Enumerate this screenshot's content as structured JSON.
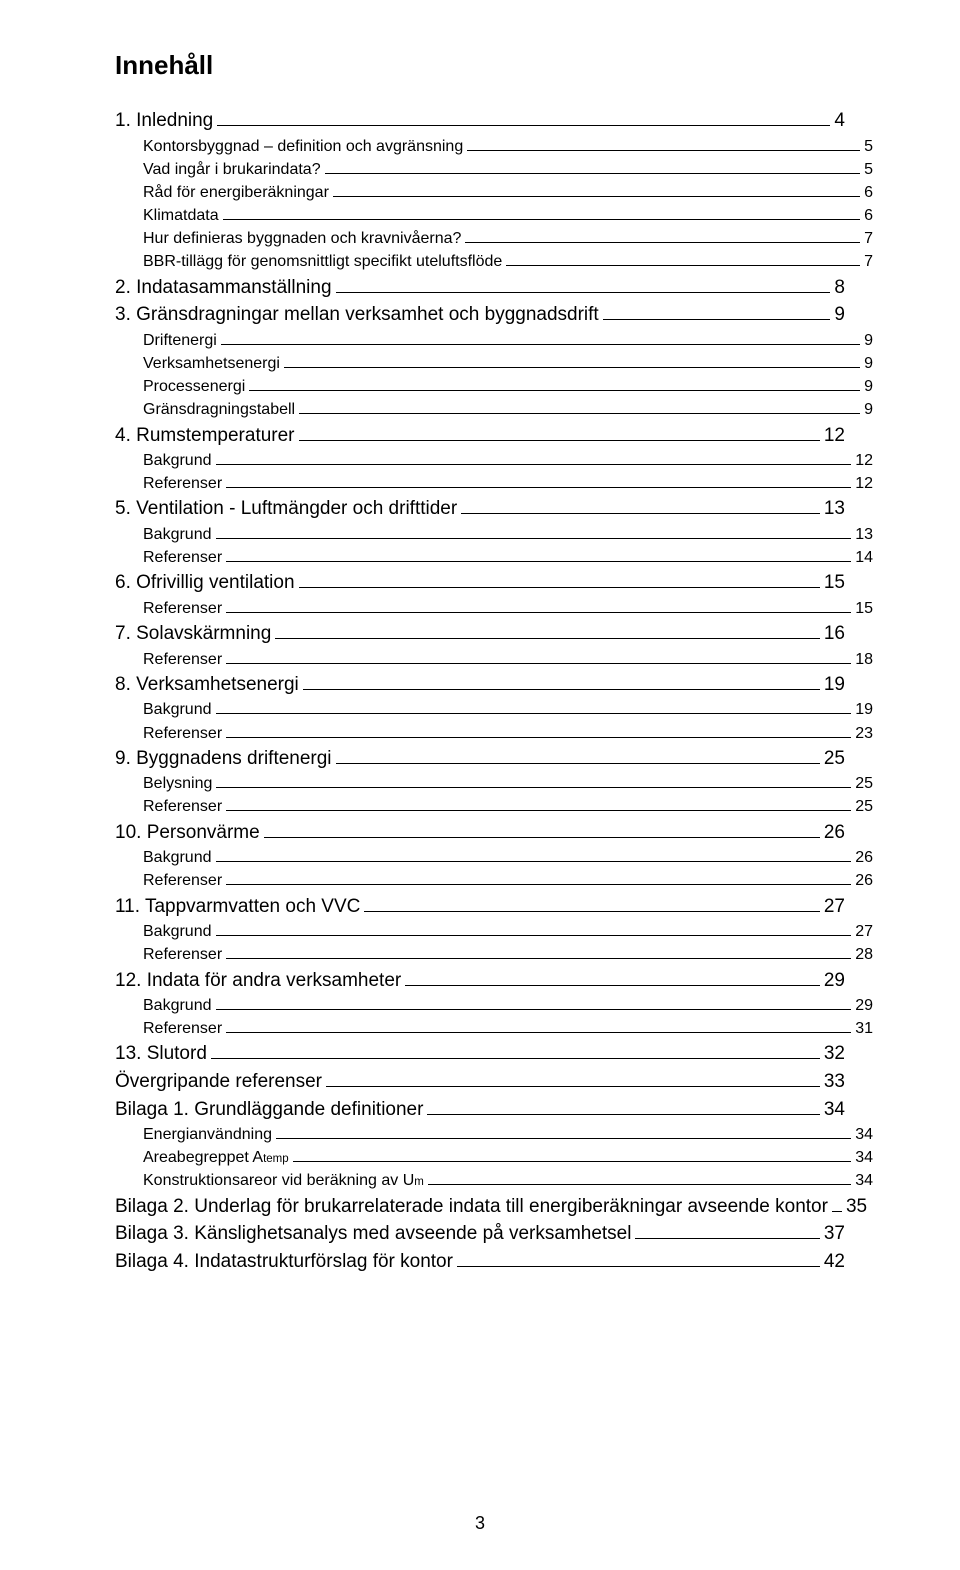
{
  "title": "Innehåll",
  "page_number": "3",
  "font_family": "Arial, Helvetica, sans-serif",
  "color_text": "#000000",
  "color_bg": "#ffffff",
  "font_sizes": {
    "title": 26,
    "level1": 19,
    "level2": 16,
    "pagenum": 18
  },
  "entries": [
    {
      "level": 1,
      "label": "1. Inledning",
      "page": "4"
    },
    {
      "level": 2,
      "label": "Kontorsbyggnad – definition och avgränsning",
      "page": "5"
    },
    {
      "level": 2,
      "label": "Vad ingår i brukarindata?",
      "page": "5"
    },
    {
      "level": 2,
      "label": "Råd för energiberäkningar",
      "page": "6"
    },
    {
      "level": 2,
      "label": "Klimatdata",
      "page": "6"
    },
    {
      "level": 2,
      "label": "Hur definieras byggnaden och kravnivåerna?",
      "page": "7"
    },
    {
      "level": 2,
      "label": "BBR-tillägg för genomsnittligt specifikt uteluftsflöde",
      "page": "7"
    },
    {
      "level": 1,
      "label": "2. Indatasammanställning",
      "page": "8"
    },
    {
      "level": 1,
      "label": "3. Gränsdragningar mellan verksamhet och byggnadsdrift",
      "page": "9"
    },
    {
      "level": 2,
      "label": "Driftenergi",
      "page": "9"
    },
    {
      "level": 2,
      "label": "Verksamhetsenergi",
      "page": "9"
    },
    {
      "level": 2,
      "label": "Processenergi",
      "page": "9"
    },
    {
      "level": 2,
      "label": "Gränsdragningstabell",
      "page": "9"
    },
    {
      "level": 1,
      "label": "4. Rumstemperaturer",
      "page": "12"
    },
    {
      "level": 2,
      "label": "Bakgrund",
      "page": "12"
    },
    {
      "level": 2,
      "label": "Referenser",
      "page": "12"
    },
    {
      "level": 1,
      "label": "5. Ventilation - Luftmängder och drifttider",
      "page": "13"
    },
    {
      "level": 2,
      "label": "Bakgrund",
      "page": "13"
    },
    {
      "level": 2,
      "label": "Referenser",
      "page": "14"
    },
    {
      "level": 1,
      "label": "6. Ofrivillig ventilation",
      "page": "15"
    },
    {
      "level": 2,
      "label": "Referenser",
      "page": "15"
    },
    {
      "level": 1,
      "label": "7. Solavskärmning",
      "page": "16"
    },
    {
      "level": 2,
      "label": "Referenser",
      "page": "18"
    },
    {
      "level": 1,
      "label": "8. Verksamhetsenergi",
      "page": "19"
    },
    {
      "level": 2,
      "label": "Bakgrund",
      "page": "19"
    },
    {
      "level": 2,
      "label": "Referenser",
      "page": "23"
    },
    {
      "level": 1,
      "label": "9. Byggnadens driftenergi",
      "page": "25"
    },
    {
      "level": 2,
      "label": "Belysning",
      "page": "25"
    },
    {
      "level": 2,
      "label": "Referenser",
      "page": "25"
    },
    {
      "level": 1,
      "label": "10. Personvärme",
      "page": "26"
    },
    {
      "level": 2,
      "label": "Bakgrund",
      "page": "26"
    },
    {
      "level": 2,
      "label": "Referenser",
      "page": "26"
    },
    {
      "level": 1,
      "label": "11. Tappvarmvatten och VVC",
      "page": "27"
    },
    {
      "level": 2,
      "label": "Bakgrund",
      "page": "27"
    },
    {
      "level": 2,
      "label": "Referenser",
      "page": "28"
    },
    {
      "level": 1,
      "label": "12. Indata för andra verksamheter",
      "page": "29"
    },
    {
      "level": 2,
      "label": "Bakgrund",
      "page": "29"
    },
    {
      "level": 2,
      "label": "Referenser",
      "page": "31"
    },
    {
      "level": 1,
      "label": "13. Slutord",
      "page": "32"
    },
    {
      "level": 1,
      "label": "Övergripande referenser",
      "page": "33"
    },
    {
      "level": 1,
      "label": "Bilaga 1. Grundläggande definitioner",
      "page": "34"
    },
    {
      "level": 2,
      "label": "Energianvändning",
      "page": "34"
    },
    {
      "level": 2,
      "label_html": "Areabegreppet A<span class=\"sub\">temp</span>",
      "label": "Areabegreppet Atemp",
      "page": "34"
    },
    {
      "level": 2,
      "label_html": "Konstruktionsareor vid beräkning av U<span class=\"sub\">m</span>",
      "label": "Konstruktionsareor vid beräkning av Um",
      "page": "34"
    },
    {
      "level": 1,
      "label": "Bilaga 2. Underlag för brukarrelaterade indata till energiberäkningar avseende kontor",
      "page": "35"
    },
    {
      "level": 1,
      "label": "Bilaga 3. Känslighetsanalys med avseende på verksamhetsel",
      "page": "37"
    },
    {
      "level": 1,
      "label": "Bilaga 4. Indatastrukturförslag för kontor",
      "page": "42"
    }
  ]
}
